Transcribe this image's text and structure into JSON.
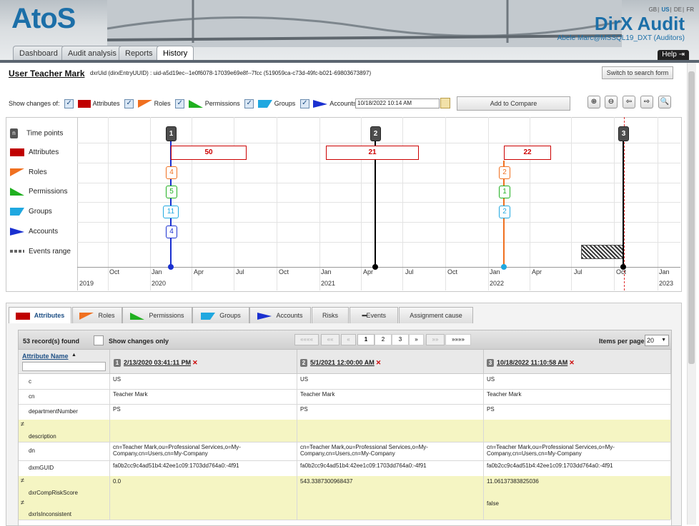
{
  "header": {
    "logo": "AtoS",
    "product": "DirX Audit",
    "user_line": "Abele Marc@MSSQL19_DXT (Auditors)",
    "languages": [
      "GB",
      "US",
      "DE",
      "FR"
    ],
    "selected_language": "US",
    "nav_tabs": [
      "Dashboard",
      "Audit analysis",
      "Reports",
      "History"
    ],
    "active_tab": "History",
    "help": "Help"
  },
  "page": {
    "title": "User Teacher Mark",
    "uid_text": "dxrUid (dirxEntryUUID) : uid-a5d19ec--1e0f6078-17039e69e8f--7fcc (519059ca-c73d-49fc-b021-69803673897)",
    "switch_button": "Switch to search form"
  },
  "filters": {
    "show_changes_label": "Show changes of:",
    "items": [
      {
        "label": "Attributes",
        "color": "#c00000"
      },
      {
        "label": "Roles",
        "color": "#f07020"
      },
      {
        "label": "Permissions",
        "color": "#20b020"
      },
      {
        "label": "Groups",
        "color": "#20a8e0"
      },
      {
        "label": "Accounts",
        "color": "#1a30d0"
      }
    ],
    "date_value": "10/18/2022 10:14 AM",
    "compare_button": "Add to Compare",
    "zoom_icons": [
      "zoom-in-icon",
      "zoom-out-icon",
      "arrow-left-icon",
      "arrow-right-icon",
      "zoom-fit-icon"
    ]
  },
  "timeline": {
    "rows": [
      "Time points",
      "Attributes",
      "Roles",
      "Permissions",
      "Groups",
      "Accounts",
      "Events range"
    ],
    "time_points": [
      "1",
      "2",
      "3"
    ],
    "attribute_counts": [
      "50",
      "21",
      "22"
    ],
    "roles": [
      "4",
      "2"
    ],
    "permissions": [
      "5",
      "1"
    ],
    "groups": [
      "11",
      "2"
    ],
    "accounts": [
      "4"
    ],
    "month_ticks": [
      "Oct",
      "Jan",
      "Apr",
      "Jul",
      "Oct",
      "Jan",
      "Apr",
      "Jul",
      "Oct",
      "Jan",
      "Apr",
      "Jul",
      "Oct",
      "Jan"
    ],
    "year_ticks": [
      "2019",
      "2020",
      "2021",
      "2022",
      "2023"
    ]
  },
  "subtabs": [
    "Attributes",
    "Roles",
    "Permissions",
    "Groups",
    "Accounts",
    "Risks",
    "Events",
    "Assignment cause"
  ],
  "grid": {
    "records_found": "53 record(s) found",
    "show_changes_only": "Show changes only",
    "pager": [
      "««««",
      "««",
      "«",
      "1",
      "2",
      "3",
      "»",
      "»»",
      "»»»»"
    ],
    "current_page": "1",
    "items_per_page_label": "Items per page",
    "items_per_page": "20",
    "attr_header": "Attribute Name",
    "sort_icon": "▲",
    "columns": [
      {
        "num": "1",
        "date": "2/13/2020 03:41:11 PM"
      },
      {
        "num": "2",
        "date": "5/1/2021 12:00:00 AM"
      },
      {
        "num": "3",
        "date": "10/18/2022 11:10:58 AM"
      }
    ],
    "change_mark": "≠",
    "rows": [
      {
        "name": "c",
        "values": [
          "US",
          "US",
          "US"
        ],
        "changed": false
      },
      {
        "name": "cn",
        "values": [
          "Teacher Mark",
          "Teacher Mark",
          "Teacher Mark"
        ],
        "changed": false
      },
      {
        "name": "departmentNumber",
        "values": [
          "PS",
          "PS",
          "PS"
        ],
        "changed": false
      },
      {
        "name": "description",
        "values": [
          "",
          "",
          ""
        ],
        "changed": true
      },
      {
        "name": "dn",
        "values": [
          "cn=Teacher Mark,ou=Professional Services,o=My-Company,cn=Users,cn=My-Company",
          "cn=Teacher Mark,ou=Professional Services,o=My-Company,cn=Users,cn=My-Company",
          "cn=Teacher Mark,ou=Professional Services,o=My-Company,cn=Users,cn=My-Company"
        ],
        "changed": false
      },
      {
        "name": "dxmGUID",
        "values": [
          "fa0b2cc9c4ad51b4:42ee1c09:1703dd764a0:-4f91",
          "fa0b2cc9c4ad51b4:42ee1c09:1703dd764a0:-4f91",
          "fa0b2cc9c4ad51b4:42ee1c09:1703dd764a0:-4f91"
        ],
        "changed": false
      },
      {
        "name": "dxrCompRiskScore",
        "values": [
          "0.0",
          "543.3387300968437",
          "11.06137383825036"
        ],
        "changed": true
      },
      {
        "name": "dxrIsInconsistent",
        "values": [
          "",
          "",
          "false"
        ],
        "changed": true
      }
    ]
  }
}
